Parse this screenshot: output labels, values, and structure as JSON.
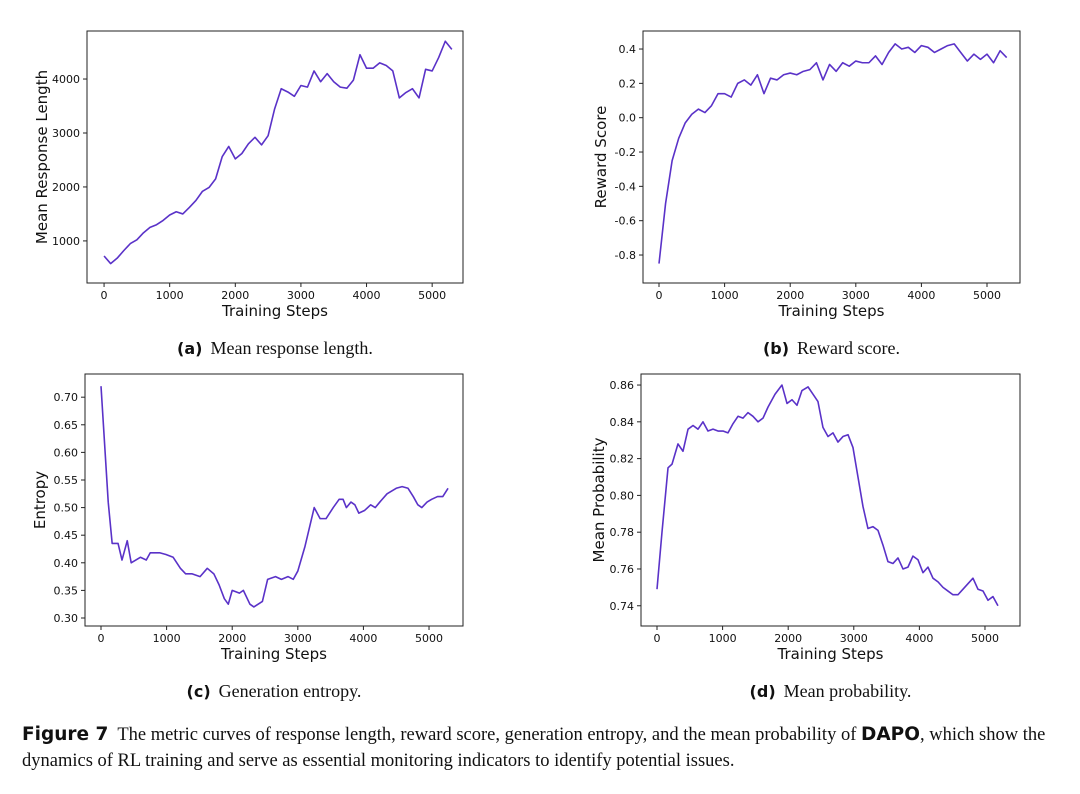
{
  "chart_data": [
    {
      "type": "line",
      "caption_label": "(a)",
      "caption": "Mean response length.",
      "xlabel": "Training Steps",
      "ylabel": "Mean Response Length",
      "series": [
        {
          "color": "#5a32c8",
          "x": [
            0,
            100,
            200,
            300,
            400,
            500,
            600,
            700,
            800,
            900,
            1000,
            1100,
            1200,
            1300,
            1400,
            1500,
            1600,
            1700,
            1800,
            1900,
            2000,
            2100,
            2200,
            2300,
            2400,
            2500,
            2600,
            2700,
            2800,
            2900,
            3000,
            3100,
            3200,
            3300,
            3400,
            3500,
            3600,
            3700,
            3800,
            3900,
            4000,
            4100,
            4200,
            4300,
            4400,
            4500,
            4600,
            4700,
            4800,
            4900,
            5000,
            5100,
            5200,
            5300
          ],
          "values": [
            720,
            580,
            680,
            820,
            950,
            1020,
            1150,
            1250,
            1300,
            1380,
            1480,
            1540,
            1500,
            1620,
            1750,
            1920,
            1990,
            2150,
            2560,
            2750,
            2520,
            2620,
            2800,
            2920,
            2780,
            2950,
            3450,
            3820,
            3760,
            3680,
            3880,
            3850,
            4150,
            3950,
            4100,
            3950,
            3850,
            3830,
            3980,
            4450,
            4200,
            4200,
            4300,
            4250,
            4150,
            3650,
            3750,
            3820,
            3650,
            4180,
            4150,
            4400,
            4700,
            4550
          ]
        }
      ],
      "xlim": [
        -260,
        5470
      ],
      "ylim": [
        220,
        4890
      ],
      "xticks": [
        0,
        1000,
        2000,
        3000,
        4000,
        5000
      ],
      "yticks": [
        1000,
        2000,
        3000,
        4000
      ]
    },
    {
      "type": "line",
      "caption_label": "(b)",
      "caption": "Reward score.",
      "xlabel": "Training Steps",
      "ylabel": "Reward Score",
      "series": [
        {
          "color": "#5a32c8",
          "x": [
            0,
            100,
            200,
            300,
            400,
            500,
            600,
            700,
            800,
            900,
            1000,
            1100,
            1200,
            1300,
            1400,
            1500,
            1600,
            1700,
            1800,
            1900,
            2000,
            2100,
            2200,
            2300,
            2400,
            2500,
            2600,
            2700,
            2800,
            2900,
            3000,
            3100,
            3200,
            3300,
            3400,
            3500,
            3600,
            3700,
            3800,
            3900,
            4000,
            4100,
            4200,
            4300,
            4400,
            4500,
            4600,
            4700,
            4800,
            4900,
            5000,
            5100,
            5200,
            5300
          ],
          "values": [
            -0.85,
            -0.5,
            -0.25,
            -0.12,
            -0.03,
            0.02,
            0.05,
            0.03,
            0.07,
            0.14,
            0.14,
            0.12,
            0.2,
            0.22,
            0.19,
            0.25,
            0.14,
            0.23,
            0.22,
            0.25,
            0.26,
            0.25,
            0.27,
            0.28,
            0.32,
            0.22,
            0.31,
            0.27,
            0.32,
            0.3,
            0.33,
            0.32,
            0.32,
            0.36,
            0.31,
            0.38,
            0.43,
            0.4,
            0.41,
            0.38,
            0.42,
            0.41,
            0.38,
            0.4,
            0.42,
            0.43,
            0.38,
            0.33,
            0.37,
            0.34,
            0.37,
            0.32,
            0.39,
            0.35
          ]
        }
      ],
      "xlim": [
        -244,
        5503
      ],
      "ylim": [
        -0.963,
        0.505
      ],
      "xticks": [
        0,
        1000,
        2000,
        3000,
        4000,
        5000
      ],
      "yticks": [
        -0.8,
        -0.6,
        -0.4,
        -0.2,
        {
          "value": 0,
          "label": "0.0"
        },
        0.2,
        0.4
      ]
    },
    {
      "type": "line",
      "caption_label": "(c)",
      "caption": "Generation entropy.",
      "xlabel": "Training Steps",
      "ylabel": "Entropy",
      "series": [
        {
          "color": "#5a32c8",
          "x": [
            0,
            110,
            170,
            260,
            320,
            400,
            460,
            600,
            690,
            750,
            900,
            990,
            1100,
            1210,
            1290,
            1390,
            1510,
            1620,
            1720,
            1800,
            1880,
            1940,
            2000,
            2110,
            2170,
            2270,
            2330,
            2460,
            2540,
            2660,
            2750,
            2850,
            2930,
            3000,
            3110,
            3250,
            3340,
            3430,
            3540,
            3630,
            3690,
            3740,
            3810,
            3870,
            3930,
            4020,
            4110,
            4180,
            4250,
            4360,
            4500,
            4590,
            4680,
            4760,
            4830,
            4890,
            4970,
            5040,
            5130,
            5210,
            5290
          ],
          "values": [
            0.72,
            0.51,
            0.435,
            0.435,
            0.405,
            0.44,
            0.4,
            0.41,
            0.405,
            0.418,
            0.418,
            0.415,
            0.41,
            0.39,
            0.38,
            0.38,
            0.375,
            0.39,
            0.38,
            0.36,
            0.335,
            0.325,
            0.35,
            0.345,
            0.35,
            0.325,
            0.32,
            0.33,
            0.37,
            0.375,
            0.37,
            0.375,
            0.37,
            0.385,
            0.43,
            0.5,
            0.48,
            0.48,
            0.5,
            0.515,
            0.515,
            0.5,
            0.51,
            0.505,
            0.49,
            0.495,
            0.505,
            0.5,
            0.51,
            0.525,
            0.535,
            0.538,
            0.535,
            0.52,
            0.505,
            0.5,
            0.51,
            0.515,
            0.52,
            0.52,
            0.535
          ]
        }
      ],
      "xlim": [
        -244,
        5518
      ],
      "ylim": [
        0.2855,
        0.742
      ],
      "xticks": [
        0,
        1000,
        2000,
        3000,
        4000,
        5000
      ],
      "yticks": [
        {
          "value": 0.3,
          "label": "0.30"
        },
        0.35,
        {
          "value": 0.4,
          "label": "0.40"
        },
        0.45,
        {
          "value": 0.5,
          "label": "0.50"
        },
        0.55,
        {
          "value": 0.6,
          "label": "0.60"
        },
        0.65,
        {
          "value": 0.7,
          "label": "0.70"
        }
      ]
    },
    {
      "type": "line",
      "caption_label": "(d)",
      "caption": "Mean probability.",
      "xlabel": "Training Steps",
      "ylabel": "Mean Probability",
      "series": [
        {
          "color": "#5a32c8",
          "x": [
            0,
            76,
            168,
            229,
            320,
            396,
            473,
            549,
            625,
            701,
            777,
            854,
            930,
            1006,
            1082,
            1159,
            1235,
            1311,
            1387,
            1463,
            1540,
            1616,
            1692,
            1799,
            1905,
            1982,
            2058,
            2134,
            2210,
            2302,
            2378,
            2454,
            2530,
            2607,
            2683,
            2759,
            2835,
            2912,
            2988,
            3064,
            3140,
            3216,
            3293,
            3369,
            3445,
            3521,
            3598,
            3674,
            3750,
            3826,
            3902,
            3979,
            4055,
            4131,
            4207,
            4284,
            4360,
            4436,
            4512,
            4588,
            4665,
            4741,
            4817,
            4893,
            4970,
            5046,
            5122,
            5198
          ],
          "values": [
            0.749,
            0.78,
            0.815,
            0.817,
            0.828,
            0.824,
            0.836,
            0.838,
            0.836,
            0.84,
            0.835,
            0.836,
            0.835,
            0.835,
            0.834,
            0.839,
            0.843,
            0.842,
            0.845,
            0.843,
            0.84,
            0.842,
            0.848,
            0.855,
            0.86,
            0.85,
            0.852,
            0.849,
            0.857,
            0.859,
            0.855,
            0.851,
            0.837,
            0.832,
            0.834,
            0.829,
            0.832,
            0.833,
            0.826,
            0.81,
            0.794,
            0.782,
            0.783,
            0.781,
            0.773,
            0.764,
            0.763,
            0.766,
            0.76,
            0.761,
            0.767,
            0.765,
            0.758,
            0.761,
            0.755,
            0.753,
            0.75,
            0.748,
            0.746,
            0.746,
            0.749,
            0.752,
            0.755,
            0.749,
            0.748,
            0.743,
            0.745,
            0.74
          ]
        }
      ],
      "xlim": [
        -244,
        5534
      ],
      "ylim": [
        0.729,
        0.866
      ],
      "xticks": [
        0,
        1000,
        2000,
        3000,
        4000,
        5000
      ],
      "yticks": [
        0.74,
        0.76,
        0.78,
        {
          "value": 0.8,
          "label": "0.80"
        },
        0.82,
        0.84,
        0.86
      ]
    }
  ],
  "figure_caption": {
    "label": "Figure 7",
    "text_1": "The metric curves of response length, reward score, generation entropy, and the mean probability of",
    "bold": "DAPO",
    "text_2": ", which show the dynamics of RL training and serve as essential monitoring indicators to identify potential issues."
  }
}
